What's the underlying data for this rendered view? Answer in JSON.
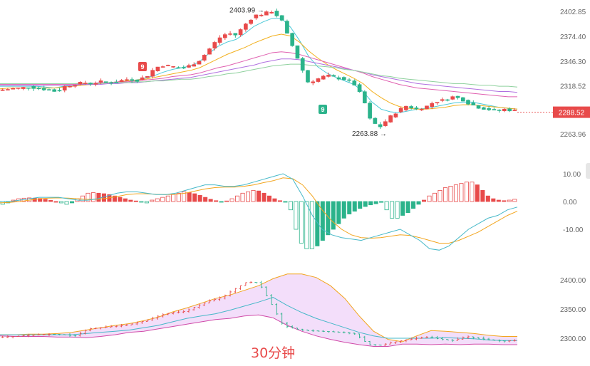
{
  "timeframe_label": "30分钟",
  "colors": {
    "up": "#e84a4a",
    "down": "#2bb38b",
    "price_tag_bg": "#e84a4a",
    "ma_cyan": "#4cc9d8",
    "ma_yellow": "#f2b01e",
    "ma_pink": "#e060b0",
    "ma_purple": "#b070e0",
    "ma_green": "#8fd19e",
    "dif": "#45b8c8",
    "dea": "#f2a51e",
    "boll_upper": "#f2a51e",
    "boll_mid": "#45b8c8",
    "boll_lower": "#d04aa8",
    "boll_fill": "#f3defa"
  },
  "chart_data": [
    {
      "type": "candlestick",
      "panel": "price",
      "y_ticks": [
        "2402.85",
        "2374.40",
        "2346.30",
        "2318.52",
        "2263.96"
      ],
      "current_price": "2288.52",
      "annotations": [
        {
          "text": "2403.99",
          "value": 2403.99
        },
        {
          "text": "2263.88",
          "value": 2263.88
        }
      ],
      "markers": [
        {
          "text": "9",
          "color": "up"
        },
        {
          "text": "9",
          "color": "down"
        }
      ],
      "close_path": [
        2314,
        2315,
        2316,
        2317,
        2316,
        2314,
        2312,
        2318,
        2320,
        2322,
        2321,
        2323,
        2322,
        2324,
        2326,
        2325,
        2329,
        2339,
        2342,
        2340,
        2338,
        2342,
        2348,
        2360,
        2372,
        2378,
        2376,
        2388,
        2398,
        2400,
        2403,
        2394,
        2370,
        2345,
        2322,
        2326,
        2330,
        2328,
        2326,
        2322,
        2308,
        2278,
        2272,
        2282,
        2290,
        2296,
        2292,
        2294,
        2300,
        2302,
        2306,
        2304,
        2298,
        2294,
        2292,
        2290,
        2292,
        2290
      ],
      "ma_lines": [
        {
          "color": "ma_cyan",
          "values": [
            2318,
            2318,
            2318,
            2318,
            2318,
            2317,
            2316,
            2318,
            2319,
            2320,
            2321,
            2322,
            2322,
            2323,
            2324,
            2325,
            2327,
            2330,
            2334,
            2337,
            2339,
            2341,
            2346,
            2355,
            2363,
            2368,
            2371,
            2378,
            2386,
            2391,
            2395,
            2395,
            2385,
            2370,
            2352,
            2340,
            2333,
            2328,
            2324,
            2320,
            2312,
            2300,
            2292,
            2289,
            2288,
            2290,
            2292,
            2293,
            2295,
            2297,
            2299,
            2300,
            2300,
            2298,
            2296,
            2294,
            2293,
            2292
          ]
        },
        {
          "color": "ma_yellow",
          "values": [
            2315,
            2316,
            2316,
            2316,
            2316,
            2316,
            2316,
            2317,
            2318,
            2319,
            2320,
            2321,
            2322,
            2323,
            2324,
            2325,
            2326,
            2328,
            2330,
            2332,
            2334,
            2336,
            2339,
            2344,
            2349,
            2354,
            2358,
            2362,
            2367,
            2371,
            2375,
            2377,
            2375,
            2368,
            2358,
            2350,
            2343,
            2337,
            2332,
            2327,
            2321,
            2312,
            2305,
            2299,
            2295,
            2293,
            2292,
            2292,
            2293,
            2294,
            2296,
            2297,
            2297,
            2296,
            2295,
            2294,
            2293,
            2292
          ]
        },
        {
          "color": "ma_pink",
          "values": [
            2320,
            2320,
            2320,
            2320,
            2320,
            2320,
            2320,
            2320,
            2320,
            2321,
            2321,
            2322,
            2322,
            2323,
            2323,
            2324,
            2325,
            2326,
            2327,
            2329,
            2330,
            2331,
            2333,
            2336,
            2339,
            2341,
            2344,
            2347,
            2350,
            2353,
            2356,
            2357,
            2356,
            2354,
            2351,
            2348,
            2345,
            2342,
            2339,
            2336,
            2333,
            2329,
            2326,
            2323,
            2320,
            2318,
            2316,
            2315,
            2314,
            2313,
            2312,
            2311,
            2310,
            2309,
            2308,
            2307,
            2306,
            2306
          ]
        },
        {
          "color": "ma_purple",
          "values": [
            2319,
            2319,
            2319,
            2319,
            2319,
            2319,
            2319,
            2319,
            2319,
            2320,
            2320,
            2320,
            2321,
            2321,
            2322,
            2322,
            2323,
            2324,
            2325,
            2326,
            2327,
            2328,
            2330,
            2332,
            2334,
            2336,
            2338,
            2340,
            2342,
            2345,
            2347,
            2349,
            2349,
            2348,
            2346,
            2344,
            2342,
            2340,
            2338,
            2336,
            2334,
            2331,
            2329,
            2327,
            2325,
            2323,
            2321,
            2320,
            2319,
            2318,
            2317,
            2316,
            2315,
            2314,
            2313,
            2312,
            2312,
            2311
          ]
        },
        {
          "color": "ma_green",
          "values": [
            2321,
            2321,
            2321,
            2321,
            2321,
            2321,
            2321,
            2321,
            2321,
            2321,
            2321,
            2321,
            2322,
            2322,
            2322,
            2323,
            2323,
            2324,
            2324,
            2325,
            2326,
            2326,
            2327,
            2329,
            2330,
            2332,
            2333,
            2335,
            2337,
            2339,
            2341,
            2342,
            2343,
            2343,
            2342,
            2341,
            2340,
            2339,
            2337,
            2336,
            2334,
            2332,
            2330,
            2329,
            2327,
            2326,
            2325,
            2324,
            2323,
            2322,
            2321,
            2321,
            2320,
            2319,
            2319,
            2318,
            2318,
            2317
          ]
        }
      ]
    },
    {
      "type": "macd",
      "panel": "macd",
      "y_ticks": [
        "10.00",
        "0.00",
        "-10.00"
      ],
      "ylim": [
        -18,
        13
      ],
      "histogram": [
        -1,
        -0.5,
        0.5,
        1,
        1.2,
        1.3,
        1.2,
        1.1,
        0.8,
        0.4,
        0,
        -0.5,
        -1,
        -0.5,
        1,
        2,
        3,
        3.2,
        3,
        2.8,
        2.5,
        2,
        1.5,
        1,
        0.5,
        0.2,
        -0.2,
        -0.5,
        0.5,
        1,
        1.5,
        2,
        2.5,
        3,
        3.5,
        3.2,
        2.8,
        2.2,
        1.5,
        0.8,
        0.3,
        -0.1,
        0.2,
        1,
        2,
        3,
        3.5,
        4,
        3.8,
        3,
        2,
        1,
        0.3,
        -0.2,
        -3,
        -10,
        -15,
        -17,
        -17,
        -16,
        -14,
        -12,
        -10,
        -8,
        -6,
        -4.5,
        -3.5,
        -2.5,
        -1.8,
        -1.2,
        -0.8,
        -0.3,
        -3,
        -6,
        -6,
        -5,
        -4,
        -2.5,
        -1,
        0.5,
        2,
        3,
        4,
        5,
        5.5,
        6,
        6.5,
        7,
        7,
        6,
        4,
        2,
        1,
        0.5,
        0.3,
        0.5,
        0.8
      ],
      "dif": [
        0,
        0,
        0.5,
        1,
        1.5,
        1.5,
        1.5,
        1,
        0.5,
        0.5,
        1,
        2,
        3,
        3.5,
        3.5,
        3,
        2.5,
        2.5,
        3,
        4,
        5,
        6,
        6,
        5.5,
        5.5,
        6,
        7,
        8,
        9,
        10,
        8,
        2,
        -5,
        -10,
        -12,
        -13,
        -13.5,
        -14,
        -13,
        -12,
        -11,
        -10,
        -12,
        -14,
        -17,
        -17.5,
        -16,
        -13,
        -10,
        -8,
        -6,
        -5,
        -3,
        -2
      ],
      "dea": [
        -0.5,
        -0.3,
        0,
        0.5,
        1,
        1.2,
        1.3,
        1.2,
        1,
        0.8,
        0.8,
        1.2,
        1.8,
        2.5,
        2.8,
        2.8,
        2.6,
        2.5,
        2.6,
        3,
        3.8,
        4.5,
        5,
        5.2,
        5.2,
        5.5,
        6,
        6.8,
        7.5,
        8.5,
        8.2,
        6,
        2,
        -3,
        -7,
        -10,
        -12,
        -13,
        -13.2,
        -13,
        -12.5,
        -12,
        -12.2,
        -13,
        -14,
        -15,
        -15,
        -14,
        -12.5,
        -11,
        -9,
        -7,
        -5,
        -3.5
      ]
    },
    {
      "type": "bollinger",
      "panel": "boll",
      "y_ticks": [
        "2400.00",
        "2350.00",
        "2300.00"
      ],
      "ylim": [
        2282,
        2416
      ],
      "upper": [
        2306,
        2306,
        2307,
        2307,
        2308,
        2310,
        2314,
        2318,
        2322,
        2325,
        2330,
        2336,
        2345,
        2352,
        2360,
        2368,
        2374,
        2382,
        2390,
        2402,
        2410,
        2410,
        2404,
        2390,
        2368,
        2338,
        2312,
        2298,
        2294,
        2304,
        2313,
        2312,
        2310,
        2308,
        2305,
        2303,
        2303
      ],
      "mid": [
        2306,
        2306,
        2306,
        2306,
        2306,
        2306,
        2308,
        2310,
        2312,
        2314,
        2318,
        2322,
        2328,
        2334,
        2338,
        2342,
        2348,
        2355,
        2362,
        2370,
        2356,
        2344,
        2334,
        2326,
        2318,
        2310,
        2304,
        2300,
        2300,
        2300,
        2300,
        2301,
        2300,
        2299,
        2297,
        2296,
        2296
      ],
      "lower": [
        2304,
        2303,
        2303,
        2303,
        2302,
        2302,
        2301,
        2303,
        2306,
        2310,
        2312,
        2316,
        2320,
        2324,
        2328,
        2332,
        2334,
        2338,
        2340,
        2335,
        2322,
        2312,
        2304,
        2298,
        2293,
        2289,
        2286,
        2286,
        2290,
        2290,
        2289,
        2290,
        2289,
        2290,
        2290,
        2289,
        2289
      ],
      "close_path": [
        2302,
        2303,
        2305,
        2306,
        2307,
        2306,
        2304,
        2316,
        2318,
        2320,
        2322,
        2326,
        2332,
        2340,
        2344,
        2346,
        2356,
        2364,
        2370,
        2384,
        2396,
        2395,
        2360,
        2322,
        2316,
        2313,
        2312,
        2311,
        2310,
        2307,
        2289,
        2288,
        2293,
        2297,
        2300,
        2302,
        2298,
        2296,
        2303,
        2300,
        2297,
        2295,
        2296
      ]
    }
  ]
}
